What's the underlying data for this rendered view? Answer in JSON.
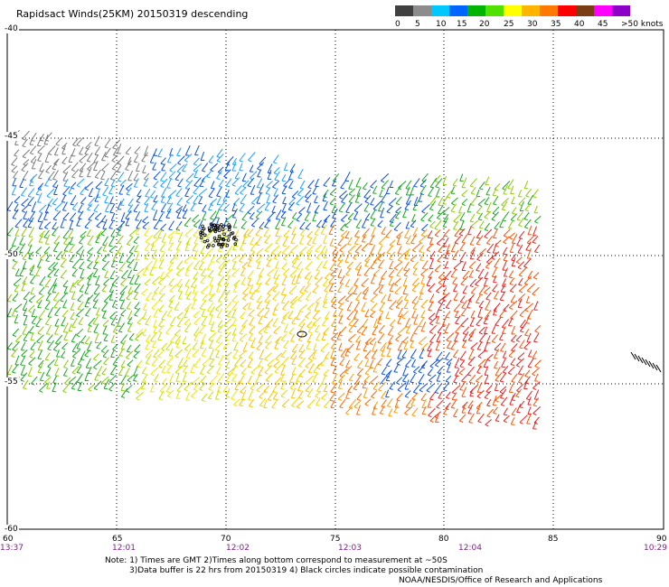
{
  "title": "Rapidsact Winds(25KM) 20150319 descending",
  "legend": {
    "colors": [
      "#404040",
      "#8c8c8c",
      "#00c8ff",
      "#0064ff",
      "#00b400",
      "#50e100",
      "#ffff00",
      "#ffb400",
      "#ff7800",
      "#ff0000",
      "#7a3c14",
      "#ff00ff",
      "#8c00c8"
    ],
    "labels": [
      "0",
      "5",
      "10",
      "15",
      "20",
      "25",
      "30",
      "35",
      "40",
      "45",
      ">50 knots"
    ]
  },
  "axes": {
    "lon_ticks": [
      "60",
      "65",
      "70",
      "75",
      "80",
      "85",
      "90"
    ],
    "lat_ticks": [
      "-40",
      "-45",
      "-50",
      "-55",
      "-60"
    ],
    "time_ticks": [
      "13:37",
      "12:01",
      "12:02",
      "12:03",
      "12:04",
      "10:29"
    ]
  },
  "notes": {
    "line1": "Note: 1) Times are GMT 2)Times along bottom correspond to measurement at ~50S",
    "line2": "3)Data buffer is 22 hrs from 20150319 4) Black circles indicate possible contamination",
    "credit": "NOAA/NESDIS/Office of Research and Applications"
  }
}
